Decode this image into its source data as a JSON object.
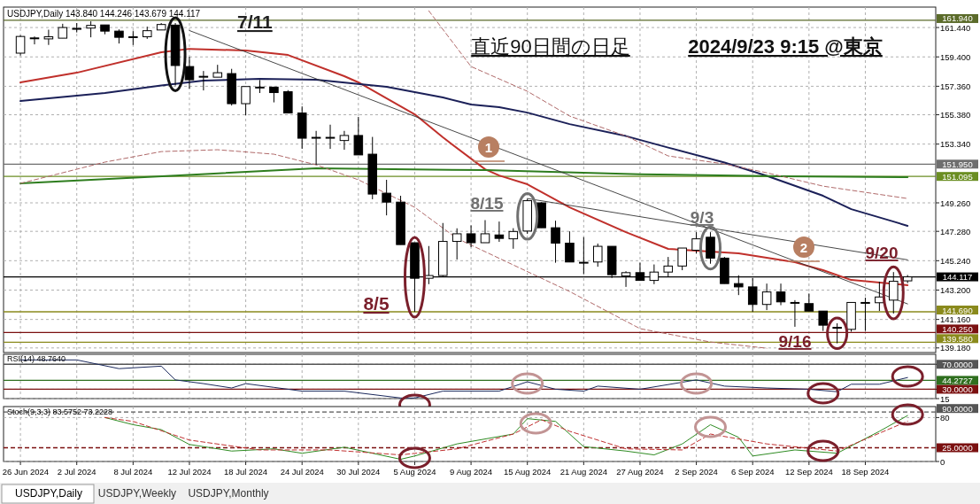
{
  "chart_data": [
    {
      "type": "candlestick",
      "title": "直近90日間の日足",
      "subtitle": "2024/9/23  9:15 @東京",
      "categories": [
        null,
        null,
        null,
        null,
        null,
        null,
        null,
        null,
        null,
        null,
        null,
        null,
        null,
        null,
        null,
        null,
        null,
        null,
        null,
        null,
        null,
        null,
        null,
        null,
        null,
        null,
        null,
        null,
        null,
        null,
        null,
        null,
        null,
        null,
        null,
        null,
        null,
        null,
        null,
        null,
        null,
        null,
        null,
        null,
        null,
        null,
        null,
        null,
        null,
        null,
        null,
        null,
        null,
        null,
        null,
        null,
        null,
        null,
        null,
        null,
        null,
        null,
        null,
        null
      ],
      "ohlc": [
        [
          159.66,
          160.9,
          159.5,
          160.82
        ],
        [
          160.7,
          160.82,
          160.27,
          160.72
        ],
        [
          160.65,
          161.29,
          160.23,
          160.8
        ],
        [
          160.7,
          161.7,
          160.7,
          161.44
        ],
        [
          161.38,
          161.75,
          161.1,
          161.38
        ],
        [
          161.4,
          161.87,
          160.76,
          161.59
        ],
        [
          161.62,
          161.62,
          160.97,
          161.19
        ],
        [
          161.19,
          161.31,
          160.33,
          160.76
        ],
        [
          160.8,
          161.19,
          160.23,
          160.8
        ],
        [
          160.8,
          161.5,
          160.65,
          161.22
        ],
        [
          161.27,
          161.75,
          161.27,
          161.65
        ],
        [
          161.61,
          161.75,
          157.41,
          158.8
        ],
        [
          158.73,
          159.41,
          157.19,
          157.81
        ],
        [
          158.05,
          158.42,
          157.07,
          158.05
        ],
        [
          157.99,
          158.85,
          157.99,
          158.3
        ],
        [
          158.24,
          158.57,
          156.02,
          156.15
        ],
        [
          156.15,
          157.34,
          155.35,
          157.34
        ],
        [
          157.3,
          157.79,
          156.89,
          157.3
        ],
        [
          157.3,
          157.3,
          156.24,
          156.92
        ],
        [
          156.98,
          157.09,
          155.5,
          155.5
        ],
        [
          155.5,
          155.96,
          153.01,
          153.75
        ],
        [
          153.81,
          154.26,
          151.9,
          153.81
        ],
        [
          153.81,
          154.69,
          153.01,
          153.81
        ],
        [
          153.59,
          154.26,
          152.95,
          153.94
        ],
        [
          153.94,
          155.23,
          152.59,
          152.59
        ],
        [
          152.64,
          153.84,
          149.51,
          149.87
        ],
        [
          149.93,
          150.86,
          148.39,
          149.31
        ],
        [
          149.31,
          149.75,
          146.36,
          146.36
        ],
        [
          146.49,
          146.49,
          141.69,
          144.02
        ],
        [
          144.02,
          146.26,
          143.61,
          144.21
        ],
        [
          144.21,
          147.86,
          144.15,
          146.58
        ],
        [
          146.58,
          147.49,
          145.32,
          147.11
        ],
        [
          147.11,
          147.69,
          146.18,
          146.49
        ],
        [
          146.49,
          148.06,
          146.49,
          147.11
        ],
        [
          147.03,
          147.96,
          146.55,
          146.79
        ],
        [
          146.76,
          147.5,
          146.07,
          147.27
        ],
        [
          147.3,
          149.53,
          147.1,
          149.41
        ],
        [
          149.26,
          149.3,
          147.53,
          147.53
        ],
        [
          147.53,
          148.02,
          145.1,
          146.46
        ],
        [
          146.46,
          147.28,
          145.15,
          145.15
        ],
        [
          145.13,
          146.87,
          144.33,
          145.13
        ],
        [
          145.15,
          146.43,
          144.82,
          146.24
        ],
        [
          146.24,
          146.24,
          144.04,
          144.27
        ],
        [
          144.18,
          144.51,
          143.42,
          144.41
        ],
        [
          144.41,
          145.1,
          143.87,
          143.87
        ],
        [
          143.87,
          144.98,
          143.61,
          144.45
        ],
        [
          144.45,
          145.5,
          144.11,
          144.87
        ],
        [
          144.87,
          146.12,
          144.58,
          146.12
        ],
        [
          145.97,
          147.22,
          145.75,
          146.76
        ],
        [
          146.87,
          147.22,
          145.03,
          145.42
        ],
        [
          145.42,
          145.5,
          143.65,
          143.65
        ],
        [
          143.65,
          144.23,
          142.85,
          143.42
        ],
        [
          143.42,
          144.04,
          141.69,
          142.2
        ],
        [
          142.2,
          143.65,
          141.81,
          143.07
        ],
        [
          143.07,
          143.65,
          142.15,
          142.38
        ],
        [
          142.34,
          142.5,
          140.65,
          142.34
        ],
        [
          142.26,
          142.96,
          141.74,
          141.74
        ],
        [
          141.74,
          141.74,
          140.36,
          140.76
        ],
        [
          140.61,
          140.89,
          139.5,
          140.61
        ],
        [
          140.47,
          142.34,
          140.31,
          142.34
        ],
        [
          142.34,
          142.67,
          140.36,
          142.34
        ],
        [
          142.32,
          143.78,
          141.75,
          142.72
        ],
        [
          142.5,
          144.45,
          141.57,
          143.81
        ],
        [
          143.84,
          144.246,
          143.679,
          144.117
        ]
      ],
      "series": [
        {
          "type": "line",
          "color": "#c0302b",
          "values": [
            157.63,
            null,
            null,
            null,
            158.3,
            null,
            null,
            null,
            null,
            null,
            159.72,
            null,
            159.96,
            null,
            null,
            null,
            159.84,
            null,
            null,
            159.53,
            null,
            null,
            null,
            158.06,
            157.63,
            null,
            null,
            null,
            155.41,
            null,
            153.81,
            null,
            null,
            151.59,
            151.16,
            null,
            150.55,
            null,
            null,
            148.95,
            null,
            null,
            null,
            147.22,
            null,
            null,
            146.06,
            null,
            null,
            null,
            null,
            145.75,
            null,
            null,
            null,
            145.13,
            null,
            144.58,
            null,
            143.9,
            null,
            null,
            null,
            143.54
          ]
        },
        {
          "type": "line",
          "color": "#1b2058",
          "values": [
            156.33,
            null,
            null,
            null,
            null,
            null,
            156.89,
            null,
            null,
            null,
            157.41,
            null,
            null,
            157.75,
            null,
            null,
            null,
            157.87,
            null,
            null,
            null,
            157.81,
            null,
            null,
            null,
            null,
            157.32,
            null,
            null,
            null,
            156.58,
            null,
            156.09,
            null,
            155.9,
            null,
            155.53,
            null,
            null,
            154.73,
            null,
            null,
            null,
            153.9,
            null,
            null,
            153.1,
            null,
            null,
            null,
            152.06,
            null,
            null,
            151.14,
            null,
            null,
            null,
            149.75,
            null,
            148.82,
            null,
            null,
            147.96,
            147.66
          ]
        },
        {
          "type": "line",
          "color": "#2e7d1e",
          "values": [
            150.61,
            null,
            null,
            null,
            null,
            null,
            null,
            null,
            null,
            null,
            null,
            151.16,
            null,
            null,
            null,
            null,
            null,
            null,
            null,
            null,
            null,
            151.66,
            null,
            null,
            null,
            null,
            null,
            null,
            null,
            null,
            null,
            null,
            null,
            151.53,
            null,
            null,
            null,
            null,
            null,
            null,
            null,
            null,
            null,
            null,
            151.25,
            null,
            null,
            null,
            null,
            null,
            null,
            null,
            null,
            null,
            151.1,
            null,
            null,
            null,
            null,
            null,
            null,
            null,
            null,
            151.04
          ]
        },
        {
          "type": "line",
          "color": "#b06a6a",
          "line_style": "dashed",
          "values": [
            null,
            null,
            null,
            null,
            null,
            null,
            null,
            null,
            null,
            null,
            null,
            null,
            null,
            null,
            null,
            null,
            null,
            null,
            null,
            null,
            null,
            null,
            null,
            null,
            null,
            null,
            null,
            null,
            null,
            162.6,
            null,
            null,
            158.73,
            null,
            null,
            null,
            157.01,
            null,
            null,
            155.29,
            null,
            null,
            null,
            153.9,
            null,
            null,
            152.52,
            null,
            null,
            null,
            151.96,
            null,
            null,
            151.35,
            null,
            null,
            null,
            150.42,
            null,
            null,
            null,
            null,
            null,
            149.56
          ]
        },
        {
          "type": "line",
          "color": "#b06a6a",
          "line_style": "dashed",
          "values": [
            150.61,
            null,
            null,
            null,
            null,
            null,
            152.09,
            null,
            null,
            null,
            152.82,
            null,
            null,
            null,
            152.95,
            null,
            null,
            null,
            152.64,
            null,
            null,
            151.9,
            null,
            null,
            150.86,
            null,
            null,
            null,
            148.95,
            null,
            null,
            146.79,
            null,
            null,
            null,
            null,
            null,
            null,
            null,
            143.1,
            null,
            null,
            null,
            null,
            140.52,
            null,
            null,
            null,
            null,
            139.59,
            null,
            null,
            null,
            139.16,
            null,
            null,
            null,
            null,
            null,
            null,
            null,
            null,
            null,
            null
          ]
        },
        {
          "type": "line",
          "color": "#333333",
          "values": [
            null,
            null,
            null,
            null,
            null,
            null,
            null,
            null,
            null,
            null,
            null,
            null,
            161.23,
            null,
            null,
            null,
            null,
            null,
            null,
            null,
            null,
            null,
            null,
            null,
            null,
            null,
            null,
            null,
            null,
            null,
            null,
            null,
            null,
            null,
            null,
            null,
            null,
            null,
            null,
            null,
            null,
            null,
            null,
            null,
            null,
            null,
            null,
            null,
            null,
            null,
            null,
            null,
            null,
            null,
            null,
            null,
            null,
            null,
            null,
            null,
            null,
            null,
            null,
            142.24
          ]
        },
        {
          "type": "line",
          "color": "#333333",
          "values": [
            null,
            null,
            null,
            null,
            null,
            null,
            null,
            null,
            null,
            null,
            null,
            null,
            null,
            null,
            null,
            null,
            null,
            null,
            null,
            null,
            null,
            null,
            null,
            null,
            null,
            null,
            null,
            null,
            null,
            null,
            null,
            null,
            null,
            null,
            null,
            null,
            149.56,
            null,
            null,
            null,
            null,
            null,
            null,
            null,
            null,
            null,
            null,
            null,
            null,
            null,
            null,
            null,
            null,
            null,
            null,
            null,
            null,
            null,
            null,
            null,
            null,
            null,
            null,
            145.3
          ]
        }
      ],
      "ylim": [
        138.86,
        162.86
      ],
      "yticks": [
        {
          "value": 161.44,
          "label": "161.440"
        },
        {
          "value": 159.4,
          "label": "159.400"
        },
        {
          "value": 157.36,
          "label": "157.360"
        },
        {
          "value": 155.38,
          "label": "155.380"
        },
        {
          "value": 153.34,
          "label": "153.340"
        },
        {
          "value": 149.26,
          "label": "149.260"
        },
        {
          "value": 147.28,
          "label": "147.280"
        },
        {
          "value": 145.24,
          "label": "145.240"
        },
        {
          "value": 143.2,
          "label": "143.200"
        },
        {
          "value": 141.16,
          "label": "141.160"
        },
        {
          "value": 139.18,
          "label": "139.180"
        }
      ],
      "ref_lines": [
        {
          "axis": "y",
          "value": 161.94,
          "label": "161.940",
          "color": "#5b6b2a"
        },
        {
          "axis": "y",
          "value": 151.95,
          "label": "151.950",
          "color": "#6e6e6e"
        },
        {
          "axis": "y",
          "value": 151.095,
          "label": "151.095",
          "color": "#6b8e23"
        },
        {
          "axis": "y",
          "value": 144.117,
          "label": "144.117",
          "color": "#000000"
        },
        {
          "axis": "y",
          "value": 141.69,
          "label": "141.690",
          "color": "#8a8a1c"
        },
        {
          "axis": "y",
          "value": 140.25,
          "label": "140.250",
          "color": "#7b1010"
        },
        {
          "axis": "y",
          "value": 139.58,
          "label": "139.580",
          "color": "#8a8a1c"
        }
      ],
      "annotations": [
        "USDJPY,Daily  143.840 144.246 143.679 144.117",
        "7/11",
        "8/5",
        "8/15",
        "9/3",
        "9/16",
        "9/20",
        "1",
        "2"
      ],
      "grid": true,
      "tick_labels": "y"
    },
    {
      "type": "line",
      "categories": [
        null,
        null,
        null,
        null,
        null,
        null,
        null,
        null,
        null,
        null,
        null,
        null,
        null,
        null,
        null,
        null,
        null,
        null,
        null,
        null,
        null,
        null,
        null,
        null,
        null,
        null,
        null,
        null,
        null,
        null,
        null,
        null,
        null,
        null,
        null,
        null,
        null,
        null,
        null,
        null,
        null,
        null,
        null,
        null,
        null,
        null,
        null,
        null,
        null,
        null,
        null,
        null,
        null,
        null,
        null,
        null,
        null,
        null,
        null,
        null,
        null,
        null,
        null,
        null
      ],
      "series": [
        {
          "color": "#1c2a5e",
          "values": [
            77,
            null,
            null,
            null,
            77,
            null,
            null,
            63,
            null,
            null,
            67,
            45,
            null,
            39,
            null,
            32,
            39,
            null,
            33,
            null,
            27,
            null,
            null,
            27,
            null,
            null,
            null,
            16,
            16,
            null,
            27,
            null,
            null,
            null,
            27,
            null,
            42,
            null,
            30,
            null,
            27,
            35,
            null,
            null,
            30,
            null,
            null,
            null,
            45,
            null,
            35,
            null,
            null,
            32,
            null,
            null,
            30,
            null,
            26,
            38,
            null,
            38,
            null,
            48.764
          ]
        }
      ],
      "ylim": [
        15,
        86
      ],
      "yticks": [
        {
          "value": 70,
          "label": "70.0000"
        },
        {
          "value": 30,
          "label": "30.0000"
        },
        15
      ],
      "ref_lines": [
        {
          "axis": "y",
          "value": 70,
          "color": "#555555"
        },
        {
          "axis": "y",
          "value": 44.2727,
          "label": "44.2727",
          "color": "#2f6f1f"
        },
        {
          "axis": "y",
          "value": 30,
          "color": "#7b1010"
        }
      ],
      "annotations": [
        "RSI(14) 48.7640"
      ],
      "grid": true,
      "tick_labels": "y"
    },
    {
      "type": "line",
      "categories": [
        "26 Jun 2024",
        null,
        null,
        null,
        "2 Jul 2024",
        null,
        null,
        null,
        "8 Jul 2024",
        null,
        null,
        null,
        "12 Jul 2024",
        null,
        null,
        null,
        "18 Jul 2024",
        null,
        null,
        null,
        "24 Jul 2024",
        null,
        null,
        null,
        "30 Jul 2024",
        null,
        null,
        null,
        "5 Aug 2024",
        null,
        null,
        null,
        "9 Aug 2024",
        null,
        null,
        null,
        "15 Aug 2024",
        null,
        null,
        null,
        "21 Aug 2024",
        null,
        null,
        null,
        "27 Aug 2024",
        null,
        null,
        null,
        "2 Sep 2024",
        null,
        null,
        null,
        "6 Sep 2024",
        null,
        null,
        null,
        "12 Sep 2024",
        null,
        null,
        null,
        "18 Sep 2024",
        null,
        null,
        null
      ],
      "series": [
        {
          "color": "#2e8b22",
          "values": [
            null,
            null,
            null,
            null,
            null,
            null,
            80,
            null,
            67,
            null,
            58,
            null,
            31,
            null,
            null,
            19,
            null,
            null,
            23,
            null,
            15,
            null,
            null,
            26,
            null,
            null,
            null,
            4,
            10,
            null,
            null,
            32,
            null,
            null,
            null,
            50,
            78,
            null,
            73,
            null,
            27,
            null,
            null,
            19,
            null,
            12,
            null,
            32,
            null,
            67,
            null,
            44,
            10,
            null,
            null,
            21,
            null,
            null,
            15,
            null,
            null,
            55,
            null,
            83.5752
          ]
        },
        {
          "color": "#c03030",
          "line_style": "dashed",
          "values": [
            null,
            null,
            null,
            null,
            null,
            null,
            80,
            null,
            73,
            null,
            null,
            null,
            39,
            null,
            null,
            null,
            null,
            21,
            null,
            null,
            null,
            null,
            21,
            null,
            null,
            null,
            null,
            12,
            null,
            null,
            null,
            23,
            null,
            null,
            null,
            50,
            null,
            76,
            null,
            55,
            null,
            null,
            null,
            23,
            null,
            null,
            null,
            21,
            null,
            50,
            null,
            null,
            null,
            32,
            null,
            null,
            null,
            null,
            19,
            null,
            null,
            null,
            null,
            73.2228
          ]
        }
      ],
      "ylim": [
        0,
        100
      ],
      "yticks": [
        80,
        0
      ],
      "ref_lines": [
        {
          "axis": "y",
          "value": 90,
          "label": "90.0000",
          "color": "#555555",
          "line_style": "dashed"
        },
        {
          "axis": "y",
          "value": 25,
          "label": "25.0000",
          "color": "#7b1010",
          "line_style": "dashed"
        }
      ],
      "annotations": [
        "Stoch(9,3,3) 83.5752 73.2228",
        "USDJPY,Daily",
        "USDJPY,Weekly",
        "USDJPY,Monthly"
      ],
      "grid": true
    }
  ]
}
